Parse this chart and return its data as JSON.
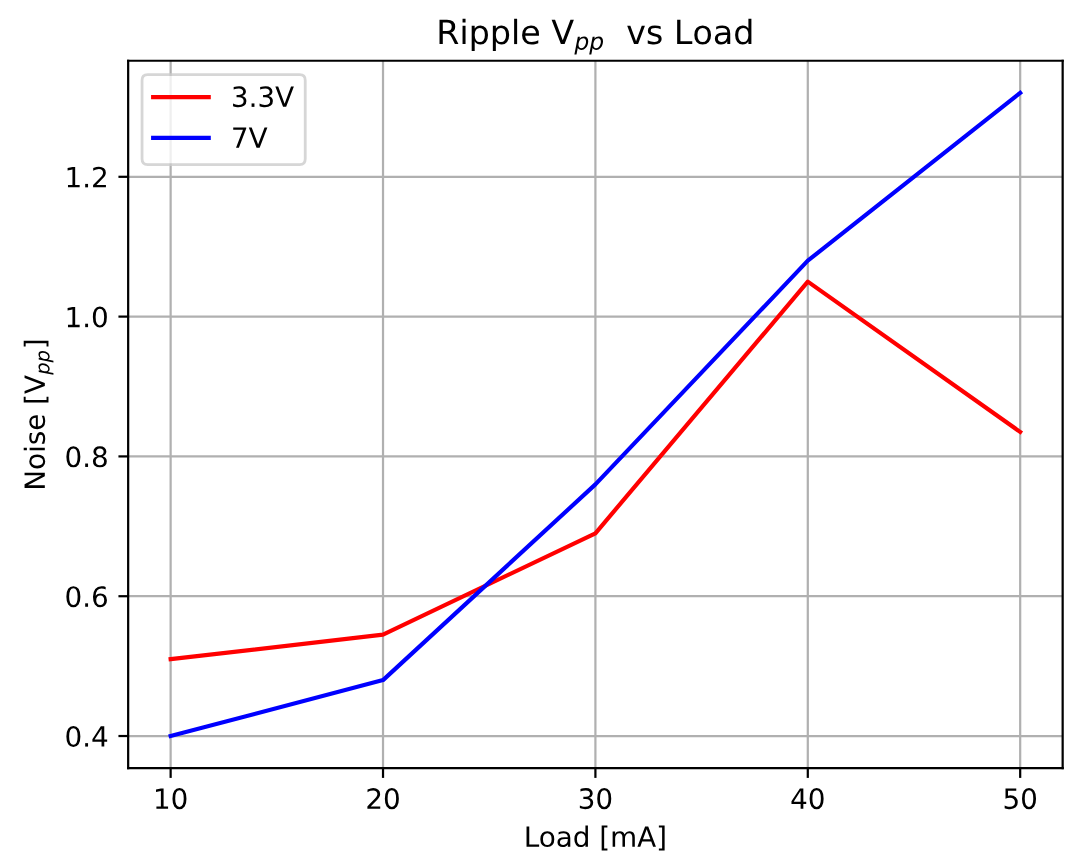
{
  "chart_data": {
    "type": "line",
    "title": "Ripple V$_{pp}$  vs Load",
    "xlabel": "Load [mA]",
    "ylabel": "Noise [V$_{pp}$]",
    "x": [
      10,
      20,
      30,
      40,
      50
    ],
    "series": [
      {
        "name": "3.3V",
        "color": "#ff0000",
        "values": [
          0.51,
          0.545,
          0.69,
          1.05,
          0.835
        ]
      },
      {
        "name": "7V",
        "color": "#0000ff",
        "values": [
          0.4,
          0.48,
          0.76,
          1.08,
          1.32
        ]
      }
    ],
    "xlim": [
      8,
      52
    ],
    "xticks": [
      10,
      20,
      30,
      40,
      50
    ],
    "ylim": [
      0.354,
      1.366
    ],
    "yticks": [
      {
        "value": 0.4,
        "label": "0.4"
      },
      {
        "value": 0.6,
        "label": "0.6"
      },
      {
        "value": 0.8,
        "label": "0.8"
      },
      {
        "value": 1.0,
        "label": "1.0"
      },
      {
        "value": 1.2,
        "label": "1.2"
      }
    ],
    "grid": true,
    "legend": "top left"
  }
}
